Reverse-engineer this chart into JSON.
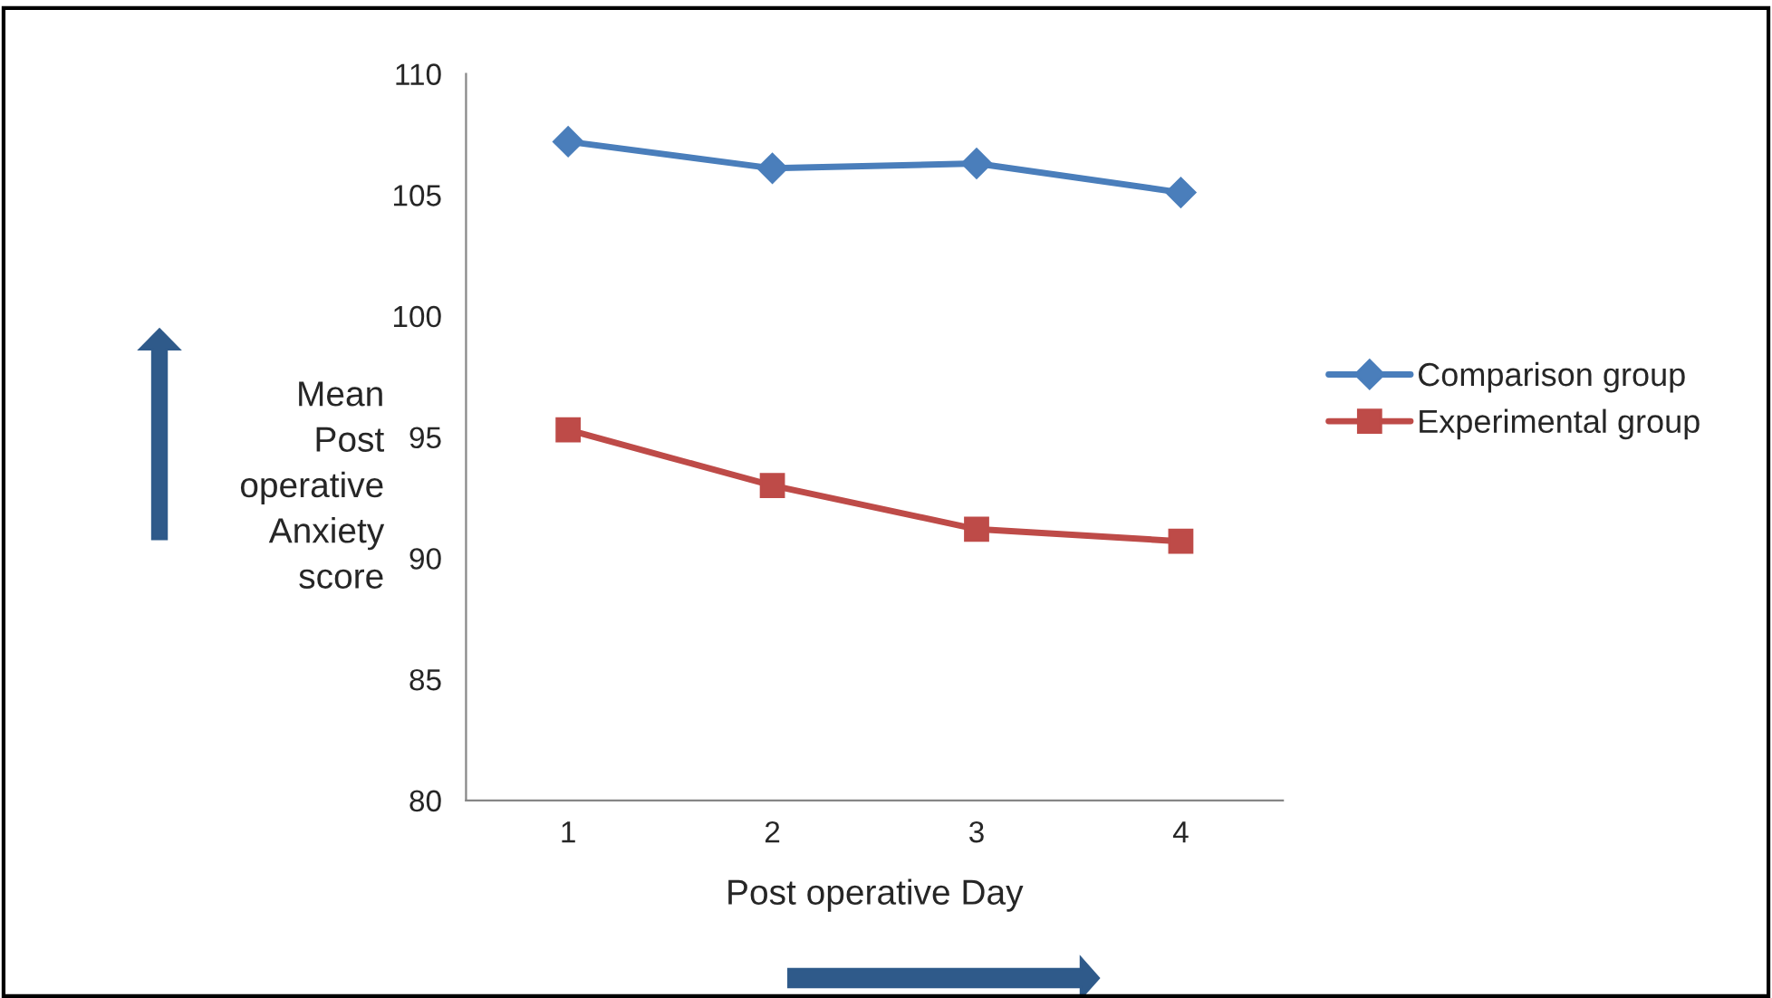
{
  "chart_data": {
    "type": "line",
    "xlabel": "Post operative Day",
    "ylabel": "Mean Post operative Anxiety score",
    "categories": [
      "1",
      "2",
      "3",
      "4"
    ],
    "series": [
      {
        "name": "Comparison group",
        "color": "#4a7ebb",
        "marker": "diamond",
        "values": [
          107.2,
          106.1,
          106.3,
          105.1
        ]
      },
      {
        "name": "Experimental group",
        "color": "#be4b48",
        "marker": "square",
        "values": [
          95.3,
          93.0,
          91.2,
          90.7
        ]
      }
    ],
    "ylim": [
      80,
      110
    ],
    "yticks": [
      80,
      85,
      90,
      95,
      100,
      105,
      110
    ],
    "grid": false,
    "legend": "right",
    "line_style": "solid"
  }
}
